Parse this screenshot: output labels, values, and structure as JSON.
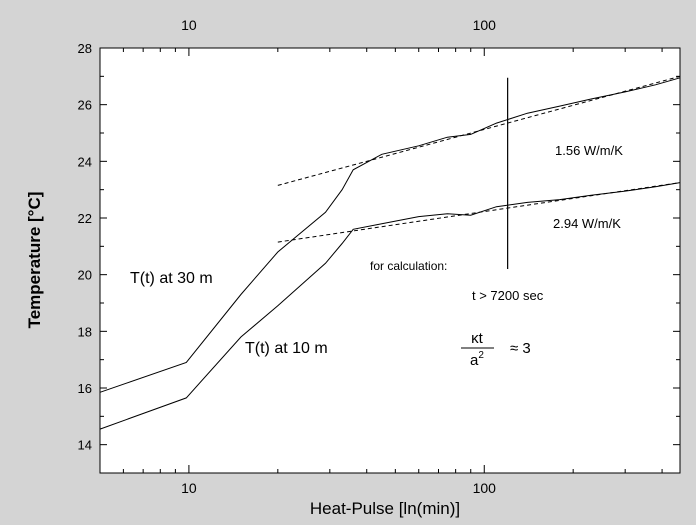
{
  "chart_data": {
    "type": "line",
    "title": "",
    "xlabel": "Heat-Pulse [ln(min)]",
    "ylabel": "Temperature [°C]",
    "x_scale": "log",
    "xlim": [
      5,
      460
    ],
    "ylim": [
      13,
      28
    ],
    "x_ticks": [
      10,
      100
    ],
    "x_tick_labels": [
      "10",
      "100"
    ],
    "y_ticks": [
      14,
      16,
      18,
      20,
      22,
      24,
      26,
      28
    ],
    "y_tick_labels": [
      "14",
      "16",
      "18",
      "20",
      "22",
      "24",
      "26",
      "28"
    ],
    "grid": false,
    "colors": {
      "plot_bg": "#ffffff",
      "figure_bg": "#d4d4d4",
      "line": "#000000"
    },
    "series": [
      {
        "label_text": "T(t) at 30 m",
        "x": [
          5,
          9.8,
          15,
          20,
          29,
          33,
          36,
          45,
          60,
          75,
          90,
          110,
          140,
          180,
          230,
          300,
          380,
          460
        ],
        "y": [
          15.85,
          16.9,
          19.3,
          20.8,
          22.2,
          23.0,
          23.7,
          24.25,
          24.55,
          24.85,
          24.95,
          25.35,
          25.7,
          25.95,
          26.2,
          26.45,
          26.7,
          26.95
        ]
      },
      {
        "label_text": "T(t) at 10 m",
        "x": [
          5,
          9.8,
          15,
          20,
          29,
          33,
          36,
          45,
          60,
          75,
          90,
          110,
          140,
          180,
          230,
          300,
          380,
          460
        ],
        "y": [
          14.55,
          15.65,
          17.8,
          18.9,
          20.4,
          21.1,
          21.6,
          21.8,
          22.05,
          22.15,
          22.1,
          22.4,
          22.55,
          22.65,
          22.8,
          22.95,
          23.1,
          23.25
        ]
      }
    ],
    "fit_lines": [
      {
        "label_text": "1.56 W/m/K",
        "x": [
          20,
          460
        ],
        "y": [
          23.15,
          27.0
        ]
      },
      {
        "label_text": "2.94 W/m/K",
        "x": [
          20,
          460
        ],
        "y": [
          21.15,
          23.25
        ]
      }
    ],
    "vertical_marker": {
      "x": 120,
      "y_range": [
        20.2,
        26.95
      ]
    },
    "annotations": {
      "calc_label": "for calculation:",
      "time_condition": "t > 7200 sec",
      "formula_numerator": "κt",
      "formula_denominator": "a",
      "formula_denominator_exponent": "2",
      "formula_relation": "≈ 3"
    }
  }
}
